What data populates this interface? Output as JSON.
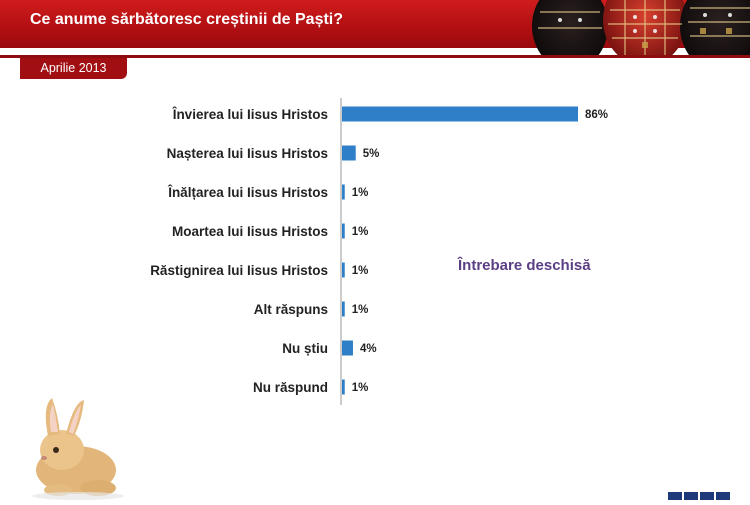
{
  "header": {
    "title": "Ce anume sărbătoresc creștinii de Paști?"
  },
  "date_tab": {
    "label": "Aprilie 2013"
  },
  "annotation": "Întrebare deschisă",
  "colors": {
    "header_red": "#c0171b",
    "bar_blue": "#2f7fc8",
    "annotation_purple": "#5b3f84"
  },
  "chart_data": {
    "type": "bar",
    "orientation": "horizontal",
    "title": "Ce anume sărbătoresc creștinii de Paști?",
    "categories": [
      "Învierea lui Iisus Hristos",
      "Nașterea lui Iisus Hristos",
      "Înălțarea lui Iisus Hristos",
      "Moartea lui Iisus Hristos",
      "Răstignirea lui Iisus Hristos",
      "Alt răspuns",
      "Nu știu",
      "Nu răspund"
    ],
    "values": [
      86,
      5,
      1,
      1,
      1,
      1,
      4,
      1
    ],
    "value_labels": [
      "86%",
      "5%",
      "1%",
      "1%",
      "1%",
      "1%",
      "4%",
      "1%"
    ],
    "unit": "%",
    "xlim": [
      0,
      100
    ],
    "grid": false,
    "legend": "none"
  }
}
